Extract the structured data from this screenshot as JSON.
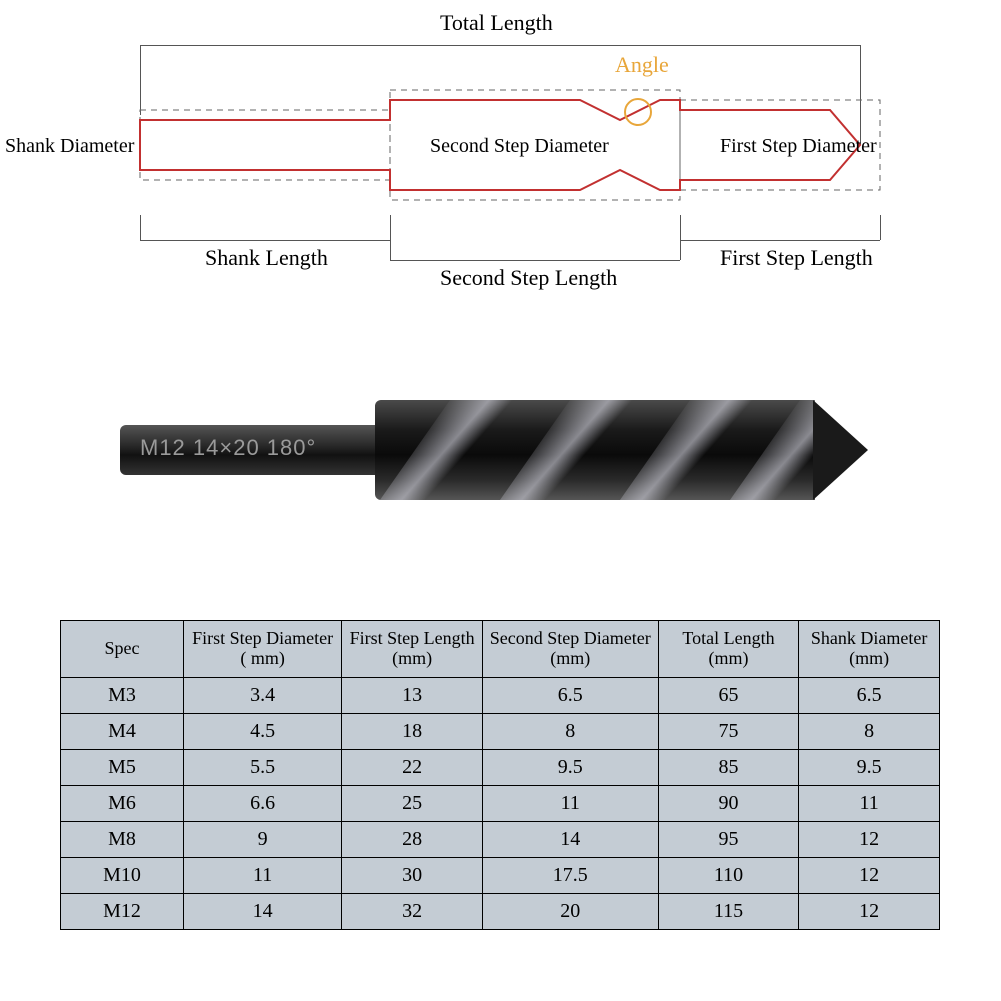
{
  "diagram": {
    "labels": {
      "total_length": "Total Length",
      "angle": "Angle",
      "shank_diameter": "Shank Diameter",
      "second_step_diameter": "Second Step Diameter",
      "first_step_diameter": "First Step Diameter",
      "shank_length": "Shank Length",
      "second_step_length": "Second Step Length",
      "first_step_length": "First Step Length"
    },
    "outline_color": "#c23030",
    "dim_color": "#666666",
    "angle_color": "#e8a63a",
    "label_fontsize": 22
  },
  "photo": {
    "marking": "M12 14×20 180°",
    "shank_gradient": [
      "#555555",
      "#2a2a2a",
      "#111111",
      "#333333"
    ],
    "body_gradient": [
      "#4a4a4a",
      "#1a1a1a",
      "#0a0a0a",
      "#2a2a2a",
      "#555555"
    ]
  },
  "table": {
    "columns": [
      "Spec",
      "First Step Diameter ( mm)",
      "First Step Length (mm)",
      "Second Step Diameter (mm)",
      "Total Length (mm)",
      "Shank Diameter (mm)"
    ],
    "column_widths": [
      "14%",
      "18%",
      "16%",
      "20%",
      "16%",
      "16%"
    ],
    "rows": [
      [
        "M3",
        "3.4",
        "13",
        "6.5",
        "65",
        "6.5"
      ],
      [
        "M4",
        "4.5",
        "18",
        "8",
        "75",
        "8"
      ],
      [
        "M5",
        "5.5",
        "22",
        "9.5",
        "85",
        "9.5"
      ],
      [
        "M6",
        "6.6",
        "25",
        "11",
        "90",
        "11"
      ],
      [
        "M8",
        "9",
        "28",
        "14",
        "95",
        "12"
      ],
      [
        "M10",
        "11",
        "30",
        "17.5",
        "110",
        "12"
      ],
      [
        "M12",
        "14",
        "32",
        "20",
        "115",
        "12"
      ]
    ],
    "cell_bg": "#c4ccd4",
    "border_color": "#000000",
    "header_fontsize": 18,
    "cell_fontsize": 20
  }
}
